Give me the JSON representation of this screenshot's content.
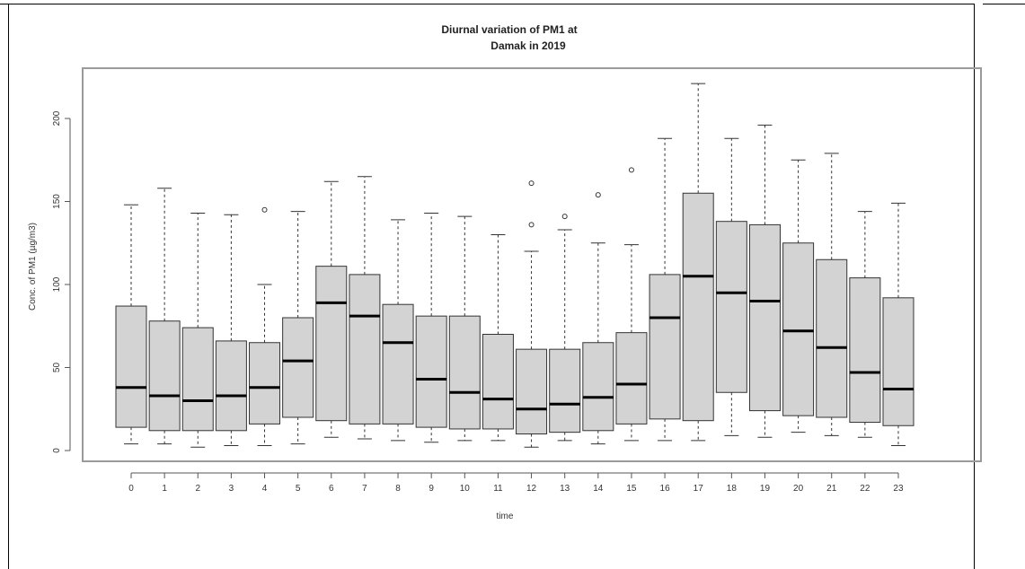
{
  "chart_data": {
    "type": "boxplot",
    "title": "Diurnal variation of PM1 at",
    "subtitle": "Damak in 2019",
    "xlabel": "time",
    "ylabel": "Conc. of PM1 (µg/m3)",
    "ylim": [
      0,
      220
    ],
    "yticks": [
      "0",
      "50",
      "100",
      "150",
      "200"
    ],
    "categories": [
      "0",
      "1",
      "2",
      "3",
      "4",
      "5",
      "6",
      "7",
      "8",
      "9",
      "10",
      "11",
      "12",
      "13",
      "14",
      "15",
      "16",
      "17",
      "18",
      "19",
      "20",
      "21",
      "22",
      "23"
    ],
    "box_fill": "#d3d3d3",
    "boxes": [
      {
        "low": 4,
        "q1": 14,
        "median": 38,
        "q3": 87,
        "high": 148,
        "outliers": []
      },
      {
        "low": 4,
        "q1": 12,
        "median": 33,
        "q3": 78,
        "high": 158,
        "outliers": []
      },
      {
        "low": 2,
        "q1": 12,
        "median": 30,
        "q3": 74,
        "high": 143,
        "outliers": []
      },
      {
        "low": 3,
        "q1": 12,
        "median": 33,
        "q3": 66,
        "high": 142,
        "outliers": []
      },
      {
        "low": 3,
        "q1": 16,
        "median": 38,
        "q3": 65,
        "high": 100,
        "outliers": [
          145
        ]
      },
      {
        "low": 4,
        "q1": 20,
        "median": 54,
        "q3": 80,
        "high": 144,
        "outliers": []
      },
      {
        "low": 8,
        "q1": 18,
        "median": 89,
        "q3": 111,
        "high": 162,
        "outliers": []
      },
      {
        "low": 7,
        "q1": 16,
        "median": 81,
        "q3": 106,
        "high": 165,
        "outliers": []
      },
      {
        "low": 6,
        "q1": 16,
        "median": 65,
        "q3": 88,
        "high": 139,
        "outliers": []
      },
      {
        "low": 5,
        "q1": 14,
        "median": 43,
        "q3": 81,
        "high": 143,
        "outliers": []
      },
      {
        "low": 6,
        "q1": 13,
        "median": 35,
        "q3": 81,
        "high": 141,
        "outliers": []
      },
      {
        "low": 6,
        "q1": 13,
        "median": 31,
        "q3": 70,
        "high": 130,
        "outliers": []
      },
      {
        "low": 2,
        "q1": 10,
        "median": 25,
        "q3": 61,
        "high": 120,
        "outliers": [
          136,
          161
        ]
      },
      {
        "low": 6,
        "q1": 11,
        "median": 28,
        "q3": 61,
        "high": 133,
        "outliers": [
          141
        ]
      },
      {
        "low": 4,
        "q1": 12,
        "median": 32,
        "q3": 65,
        "high": 125,
        "outliers": [
          154
        ]
      },
      {
        "low": 6,
        "q1": 16,
        "median": 40,
        "q3": 71,
        "high": 124,
        "outliers": [
          169
        ]
      },
      {
        "low": 6,
        "q1": 19,
        "median": 80,
        "q3": 106,
        "high": 188,
        "outliers": []
      },
      {
        "low": 6,
        "q1": 18,
        "median": 105,
        "q3": 155,
        "high": 221,
        "outliers": []
      },
      {
        "low": 9,
        "q1": 35,
        "median": 95,
        "q3": 138,
        "high": 188,
        "outliers": []
      },
      {
        "low": 8,
        "q1": 24,
        "median": 90,
        "q3": 136,
        "high": 196,
        "outliers": []
      },
      {
        "low": 11,
        "q1": 21,
        "median": 72,
        "q3": 125,
        "high": 175,
        "outliers": []
      },
      {
        "low": 9,
        "q1": 20,
        "median": 62,
        "q3": 115,
        "high": 179,
        "outliers": []
      },
      {
        "low": 8,
        "q1": 17,
        "median": 47,
        "q3": 104,
        "high": 144,
        "outliers": []
      },
      {
        "low": 3,
        "q1": 15,
        "median": 37,
        "q3": 92,
        "high": 149,
        "outliers": []
      }
    ]
  }
}
